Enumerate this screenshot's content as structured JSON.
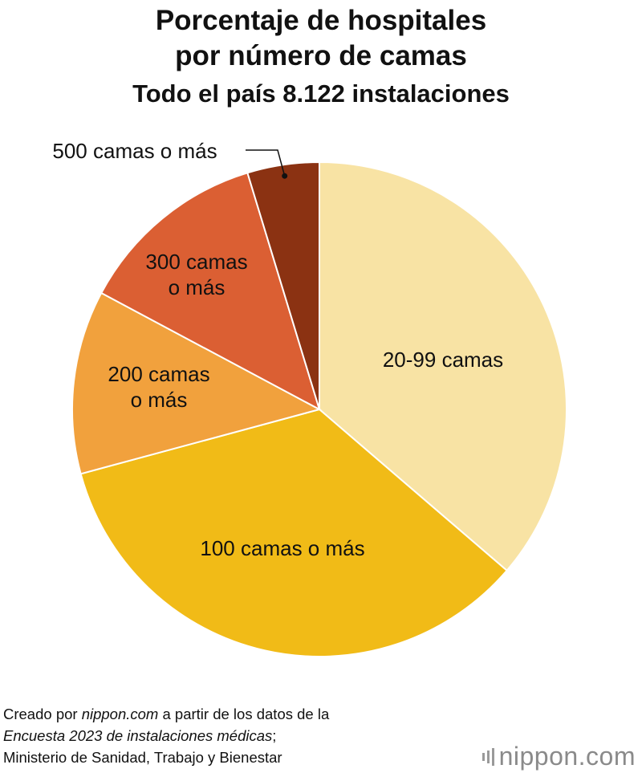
{
  "chart_data": {
    "type": "pie",
    "title_lines": [
      "Porcentaje de hospitales",
      "por número de camas"
    ],
    "subtitle": "Todo el país 8.122 instalaciones",
    "start_angle_deg": 0,
    "direction": "clockwise",
    "slices": [
      {
        "label_lines": [
          "20-99 camas"
        ],
        "value": 36.3,
        "color": "#F8E3A4"
      },
      {
        "label_lines": [
          "100 camas o más"
        ],
        "value": 34.5,
        "color": "#F1BB17"
      },
      {
        "label_lines": [
          "200 camas",
          "o más"
        ],
        "value": 12.0,
        "color": "#F1A13D"
      },
      {
        "label_lines": [
          "300 camas",
          "o más"
        ],
        "value": 12.5,
        "color": "#DB5F33"
      },
      {
        "label_lines": [
          "500 camas o más"
        ],
        "value": 4.7,
        "color": "#8B3212"
      }
    ]
  },
  "footer": {
    "line1_a": "Creado por ",
    "line1_b": "nippon.com",
    "line1_c": " a partir de los datos de la",
    "line2_a": "Encuesta 2023 de instalaciones médicas",
    "line2_b": ";",
    "line3": "Ministerio de Sanidad, Trabajo y Bienestar"
  },
  "brand": {
    "name": "nippon",
    "suffix": ".com",
    "color": "#8a8a8a"
  }
}
